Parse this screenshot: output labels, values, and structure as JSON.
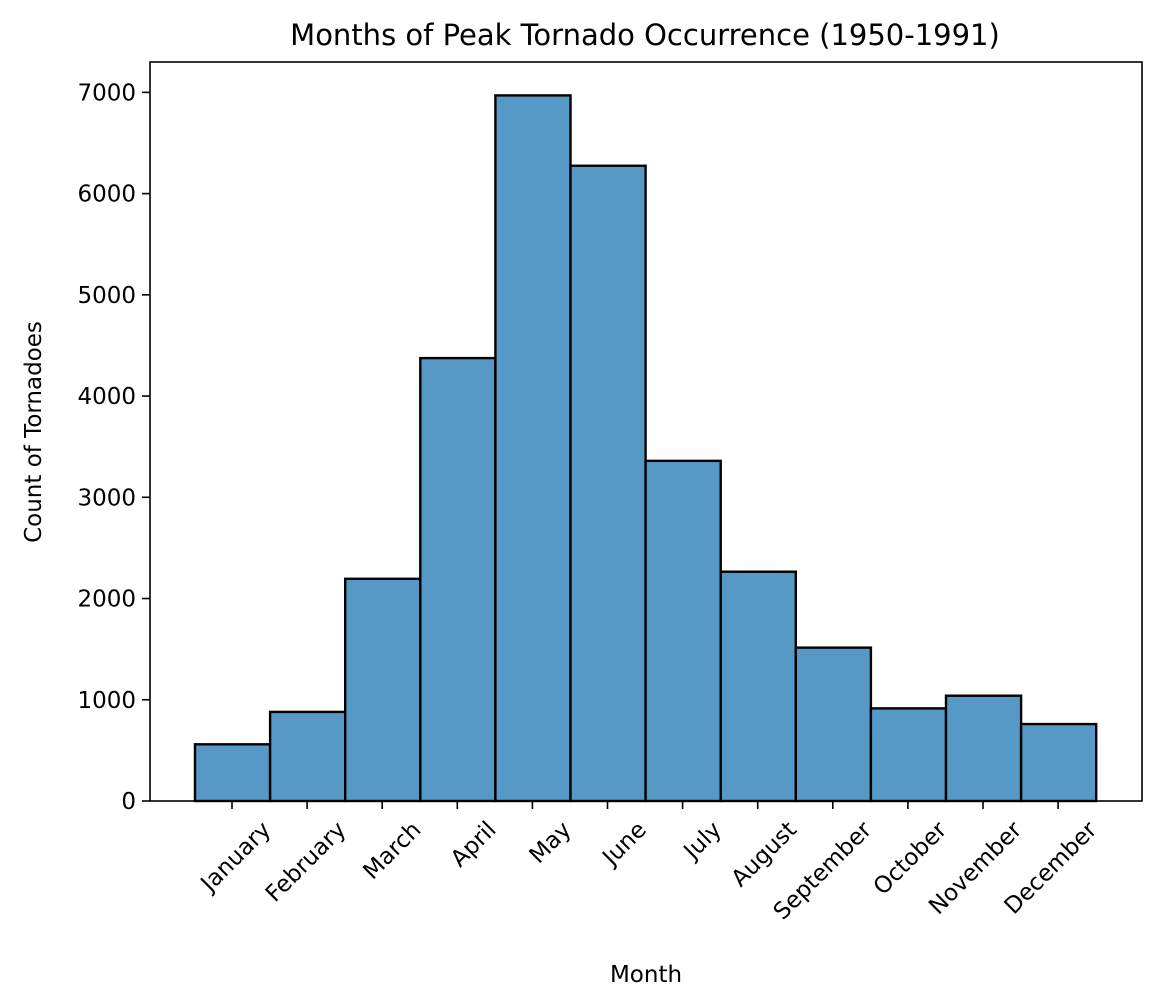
{
  "chart_data": {
    "type": "bar",
    "title": "Months of Peak Tornado Occurrence (1950-1991)",
    "xlabel": "Month",
    "ylabel": "Count of Tornadoes",
    "categories": [
      "January",
      "February",
      "March",
      "April",
      "May",
      "June",
      "July",
      "August",
      "September",
      "October",
      "November",
      "December"
    ],
    "values": [
      560,
      880,
      2195,
      4375,
      6970,
      6275,
      3360,
      2265,
      1515,
      915,
      1040,
      760
    ],
    "ylim": [
      0,
      7300
    ],
    "yticks": [
      0,
      1000,
      2000,
      3000,
      4000,
      5000,
      6000,
      7000
    ],
    "grid": false,
    "colors": {
      "bar": "#5799c6",
      "edge": "#000000"
    }
  }
}
